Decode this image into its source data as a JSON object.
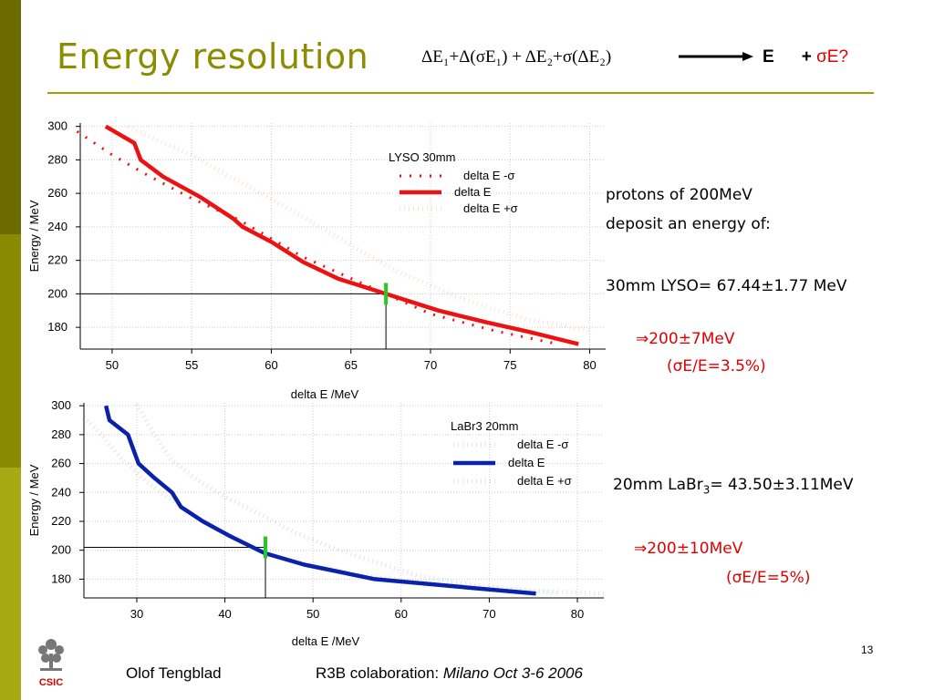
{
  "slide": {
    "title": "Energy resolution",
    "page_number": "13",
    "logo_text": "CSIC",
    "colors": {
      "title": "#8c8c00",
      "rule": "#a0a000",
      "sidebar_dark": "#6b6b00",
      "sidebar_mid": "#8a8a00",
      "sidebar_light": "#a8a814",
      "lyso": "#ee1111",
      "labr": "#0a22aa",
      "marker": "#22cc22",
      "note_red": "#e00000"
    }
  },
  "formula": {
    "lhs": "ΔE₁+Δ(σE₁) + ΔE₂+σ(ΔE₂)",
    "rhs_e": "E",
    "rhs_plus": "+",
    "rhs_sigma": "σE?"
  },
  "notes": {
    "line1": "protons of 200MeV",
    "line2": "deposit an energy of:",
    "lyso_value": "30mm LYSO=  67.44±1.77 MeV",
    "lyso_result1": "⇒200±7MeV",
    "lyso_result2": "(σE/E=3.5%)",
    "labr_prefix": "20mm LaBr",
    "labr_sub": "3",
    "labr_suffix": "=  43.50±3.11MeV",
    "labr_result1": "⇒200±10MeV",
    "labr_result2": "(σE/E=5%)"
  },
  "footer": {
    "author": "Olof Tengblad",
    "collab": "R3B colaboration: ",
    "venue": "Milano  Oct 3-6  2006"
  },
  "chart_data": [
    {
      "type": "line",
      "legend_title": "LYSO 30mm",
      "xlabel": "delta E /MeV",
      "ylabel": "Energy / MeV",
      "xlim": [
        48,
        81
      ],
      "ylim": [
        167,
        302
      ],
      "xticks": [
        50,
        55,
        60,
        65,
        70,
        75,
        80
      ],
      "yticks": [
        180,
        200,
        220,
        240,
        260,
        280,
        300
      ],
      "grid": true,
      "legend_position": "upper-right",
      "series": [
        {
          "name": "delta E -σ",
          "style": "dotted",
          "x": [
            47.8,
            50,
            52,
            55,
            58,
            62,
            66,
            70,
            74,
            78
          ],
          "y": [
            297,
            283,
            272,
            257,
            244,
            222,
            205,
            188,
            178,
            170
          ]
        },
        {
          "name": "delta E",
          "style": "solid",
          "x": [
            49.6,
            51.4,
            51.8,
            53.2,
            55.5,
            57.6,
            58.2,
            60,
            62,
            64.2,
            67.2,
            70.5,
            73.5,
            76.3,
            79.3
          ],
          "y": [
            300,
            290,
            280,
            270,
            258,
            245,
            240,
            231,
            219,
            209,
            200,
            190,
            183,
            177,
            170
          ]
        },
        {
          "name": "delta E +σ",
          "style": "faint-dotted",
          "x": [
            51,
            53,
            55,
            57,
            59,
            62,
            65,
            68,
            72,
            76,
            80
          ],
          "y": [
            300,
            291,
            283,
            272,
            262,
            246,
            229,
            213,
            197,
            185,
            178
          ]
        }
      ],
      "reference": {
        "y": 200,
        "x": 67.2
      }
    },
    {
      "type": "line",
      "legend_title": "LaBr3 20mm",
      "xlabel": "delta E /MeV",
      "ylabel": "Energy / MeV",
      "xlim": [
        24,
        83
      ],
      "ylim": [
        167,
        302
      ],
      "xticks": [
        30,
        40,
        50,
        60,
        70,
        80
      ],
      "yticks": [
        180,
        200,
        220,
        240,
        260,
        280,
        300
      ],
      "grid": true,
      "legend_position": "upper-right",
      "series": [
        {
          "name": "delta E -σ",
          "style": "faint-dotted",
          "x": [
            24,
            26,
            28,
            31,
            35,
            40,
            46,
            55,
            65,
            75,
            83
          ],
          "y": [
            292,
            280,
            265,
            248,
            230,
            212,
            195,
            183,
            176,
            172,
            170
          ]
        },
        {
          "name": "delta E",
          "style": "solid",
          "x": [
            26.5,
            26.9,
            29,
            30.2,
            32,
            34,
            35,
            37.5,
            40.5,
            44.5,
            49,
            57,
            66,
            75.3
          ],
          "y": [
            300,
            290,
            280,
            260,
            250,
            240,
            230,
            220,
            210,
            198,
            190,
            180,
            175,
            170
          ]
        },
        {
          "name": "delta E +σ",
          "style": "faint-dotted",
          "x": [
            30,
            32,
            34,
            37,
            40,
            44,
            48,
            53,
            58,
            62,
            68,
            78
          ],
          "y": [
            301,
            280,
            262,
            248,
            237,
            225,
            212,
            200,
            190,
            182,
            176,
            170
          ]
        }
      ],
      "reference": {
        "y": 202,
        "x": 44.6
      }
    }
  ]
}
